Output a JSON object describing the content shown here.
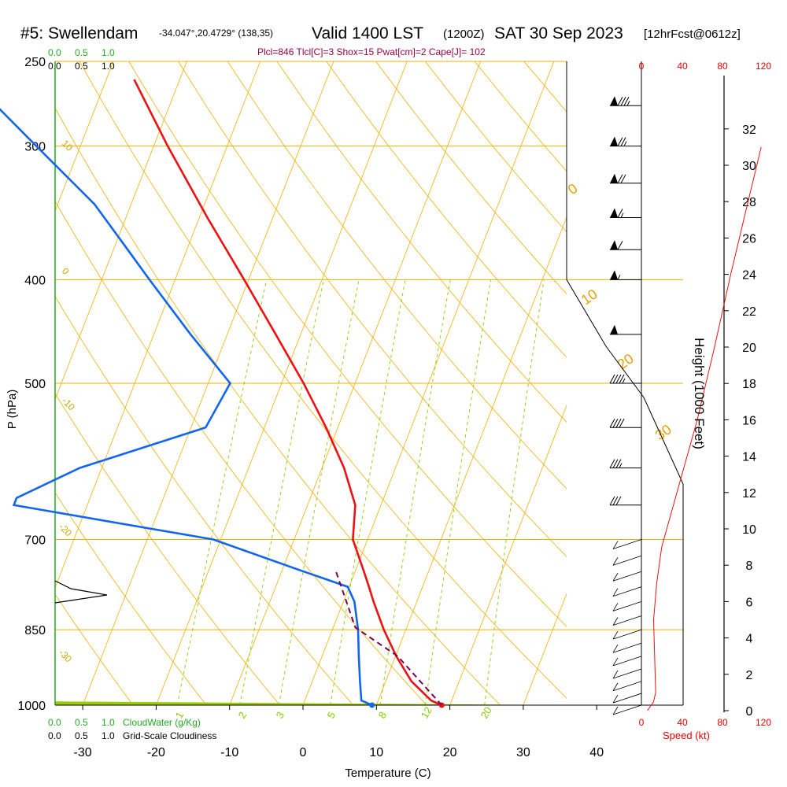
{
  "header": {
    "station": "#5: Swellendam",
    "coords": "-34.047°,20.4729° (138,35)",
    "valid": "Valid 1400 LST",
    "zulu": "(1200Z)",
    "date": "SAT 30 Sep 2023",
    "forecast": "[12hrFcst@0612z]"
  },
  "params_line": "Plcl=846 Tlcl[C]=3 Shox=15 Pwat[cm]=2 Cape[J]= 102",
  "cloud_scale": {
    "top_green": [
      "0.0",
      "0.5",
      "1.0"
    ],
    "top_black": [
      "0.0",
      "0.5",
      "1.0"
    ],
    "bottom_green": [
      "0.0",
      "0.5",
      "1.0"
    ],
    "bottom_black": [
      "0.0",
      "0.5",
      "1.0"
    ],
    "cloudwater_label": "CloudWater (g/Kg)",
    "cloudiness_label": "Grid-Scale Cloudiness"
  },
  "speed_axis": {
    "ticks": [
      "0",
      "40",
      "80",
      "120"
    ],
    "label": "Speed (kt)",
    "color": "#ee0000"
  },
  "height_axis": {
    "ticks": [
      "0",
      "2",
      "4",
      "6",
      "8",
      "10",
      "12",
      "14",
      "16",
      "18",
      "20",
      "22",
      "24",
      "26",
      "28",
      "30",
      "32"
    ],
    "label": "Height (1000 Feet)"
  },
  "colors": {
    "temperature": "#ee1111",
    "dewpoint": "#1166ee",
    "parcel": "#770055",
    "isobar": "#f0b000",
    "dry_adiabat": "#f0b000",
    "moist_adiabat": "#99cc00",
    "mixing_ratio": "#88cc00",
    "cloudwater": "#22aa22"
  },
  "chart_data": {
    "type": "line",
    "xlabel": "Temperature (C)",
    "ylabel": "P (hPa)",
    "x_ticks": [
      -30,
      -20,
      -10,
      0,
      10,
      20,
      30,
      40
    ],
    "y_ticks": [
      250,
      300,
      400,
      500,
      700,
      850,
      1000
    ],
    "xlim": [
      -34,
      36
    ],
    "ylim": [
      1000,
      250
    ],
    "y_scale": "log",
    "skew": "skew-T",
    "dry_adiabat_labels": [
      "10",
      "0",
      "-10",
      "-20",
      "-30"
    ],
    "moist_adiabat_labels": [
      "0",
      "10",
      "20",
      "30"
    ],
    "mixing_ratio_labels": [
      "1",
      "2",
      "3",
      "5",
      "8",
      "12",
      "20"
    ],
    "series": [
      {
        "name": "temperature",
        "points": [
          [
            1000,
            18.9
          ],
          [
            990,
            17.2
          ],
          [
            950,
            13.5
          ],
          [
            900,
            10.1
          ],
          [
            850,
            7.0
          ],
          [
            800,
            4.1
          ],
          [
            775,
            2.7
          ],
          [
            750,
            1.2
          ],
          [
            700,
            -2.0
          ],
          [
            650,
            -3.5
          ],
          [
            600,
            -7.0
          ],
          [
            550,
            -11.6
          ],
          [
            500,
            -17.0
          ],
          [
            450,
            -23.4
          ],
          [
            400,
            -30.6
          ],
          [
            350,
            -38.9
          ],
          [
            300,
            -48.1
          ],
          [
            260,
            -56.2
          ]
        ]
      },
      {
        "name": "dewpoint",
        "points": [
          [
            1000,
            9.4
          ],
          [
            990,
            7.7
          ],
          [
            950,
            6.5
          ],
          [
            900,
            5.0
          ],
          [
            850,
            3.5
          ],
          [
            800,
            1.5
          ],
          [
            775,
            -0.2
          ],
          [
            750,
            -7.0
          ],
          [
            700,
            -21.0
          ],
          [
            650,
            -50.0
          ],
          [
            640,
            -50.0
          ],
          [
            600,
            -43.0
          ],
          [
            550,
            -28.0
          ],
          [
            500,
            -27.0
          ],
          [
            450,
            -35.0
          ],
          [
            400,
            -43.5
          ],
          [
            370,
            -49.0
          ],
          [
            340,
            -55.0
          ],
          [
            300,
            -66.0
          ],
          [
            260,
            -78.5
          ]
        ]
      },
      {
        "name": "parcel",
        "points": [
          [
            1000,
            18.9
          ],
          [
            950,
            14.7
          ],
          [
            900,
            10.3
          ],
          [
            846,
            3.0
          ],
          [
            800,
            0.4
          ],
          [
            750,
            -2.6
          ]
        ]
      }
    ],
    "wind_barbs": [
      {
        "p": 1000,
        "speed_kt": 5
      },
      {
        "p": 975,
        "speed_kt": 8
      },
      {
        "p": 950,
        "speed_kt": 10
      },
      {
        "p": 925,
        "speed_kt": 10
      },
      {
        "p": 900,
        "speed_kt": 12
      },
      {
        "p": 875,
        "speed_kt": 12
      },
      {
        "p": 850,
        "speed_kt": 12
      },
      {
        "p": 825,
        "speed_kt": 15
      },
      {
        "p": 800,
        "speed_kt": 15
      },
      {
        "p": 775,
        "speed_kt": 18
      },
      {
        "p": 750,
        "speed_kt": 20
      },
      {
        "p": 725,
        "speed_kt": 20
      },
      {
        "p": 700,
        "speed_kt": 25
      },
      {
        "p": 650,
        "speed_kt": 30
      },
      {
        "p": 600,
        "speed_kt": 35
      },
      {
        "p": 550,
        "speed_kt": 40
      },
      {
        "p": 500,
        "speed_kt": 45
      },
      {
        "p": 450,
        "speed_kt": 50
      },
      {
        "p": 400,
        "speed_kt": 55
      },
      {
        "p": 375,
        "speed_kt": 60
      },
      {
        "p": 350,
        "speed_kt": 65
      },
      {
        "p": 325,
        "speed_kt": 70
      },
      {
        "p": 300,
        "speed_kt": 75
      },
      {
        "p": 275,
        "speed_kt": 85
      }
    ],
    "wind_speed_profile": [
      {
        "height_kft": 0,
        "speed_kt": 6
      },
      {
        "height_kft": 0.5,
        "speed_kt": 12
      },
      {
        "height_kft": 1,
        "speed_kt": 14
      },
      {
        "height_kft": 3,
        "speed_kt": 13
      },
      {
        "height_kft": 5,
        "speed_kt": 12
      },
      {
        "height_kft": 7,
        "speed_kt": 15
      },
      {
        "height_kft": 9,
        "speed_kt": 20
      },
      {
        "height_kft": 11,
        "speed_kt": 30
      },
      {
        "height_kft": 13,
        "speed_kt": 40
      },
      {
        "height_kft": 16,
        "speed_kt": 55
      },
      {
        "height_kft": 20,
        "speed_kt": 72
      },
      {
        "height_kft": 24,
        "speed_kt": 88
      },
      {
        "height_kft": 28,
        "speed_kt": 105
      },
      {
        "height_kft": 31,
        "speed_kt": 118
      }
    ]
  }
}
